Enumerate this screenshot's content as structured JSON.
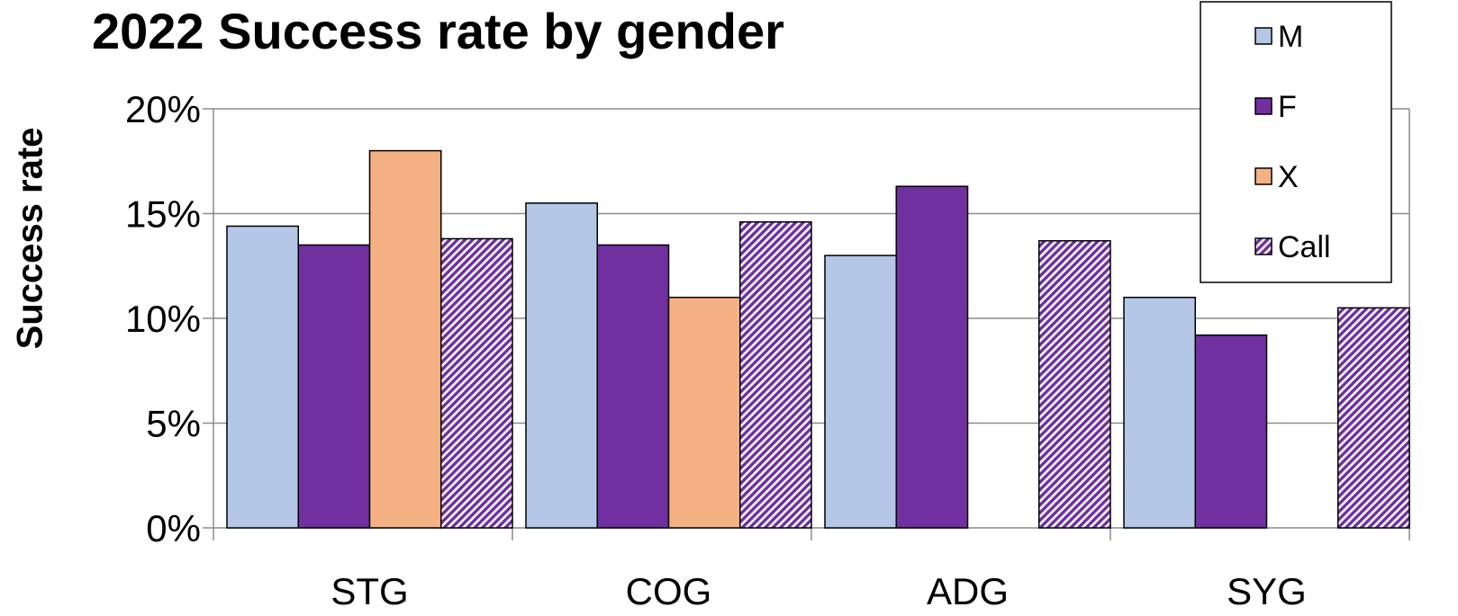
{
  "chart_data": {
    "type": "bar",
    "title": "2022 Success rate by gender",
    "xlabel": "",
    "ylabel": "Success rate",
    "categories": [
      "STG",
      "COG",
      "ADG",
      "SYG"
    ],
    "ylim": [
      0,
      0.2
    ],
    "ytick_values": [
      0,
      0.05,
      0.1,
      0.15,
      0.2
    ],
    "ytick_labels": [
      "0%",
      "5%",
      "10%",
      "15%",
      "20%"
    ],
    "grid": true,
    "legend_position": "top-right",
    "series": [
      {
        "name": "M",
        "color": "#b4c7e7",
        "pattern": "solid",
        "values": [
          0.144,
          0.155,
          0.13,
          0.11
        ]
      },
      {
        "name": "F",
        "color": "#7030a0",
        "pattern": "solid",
        "values": [
          0.135,
          0.135,
          0.163,
          0.092
        ]
      },
      {
        "name": "X",
        "color": "#f4b183",
        "pattern": "solid",
        "values": [
          0.18,
          0.11,
          null,
          null
        ]
      },
      {
        "name": "Call",
        "color": "#7030a0",
        "pattern": "diagonal-hatch",
        "values": [
          0.138,
          0.146,
          0.137,
          0.105
        ]
      }
    ]
  }
}
